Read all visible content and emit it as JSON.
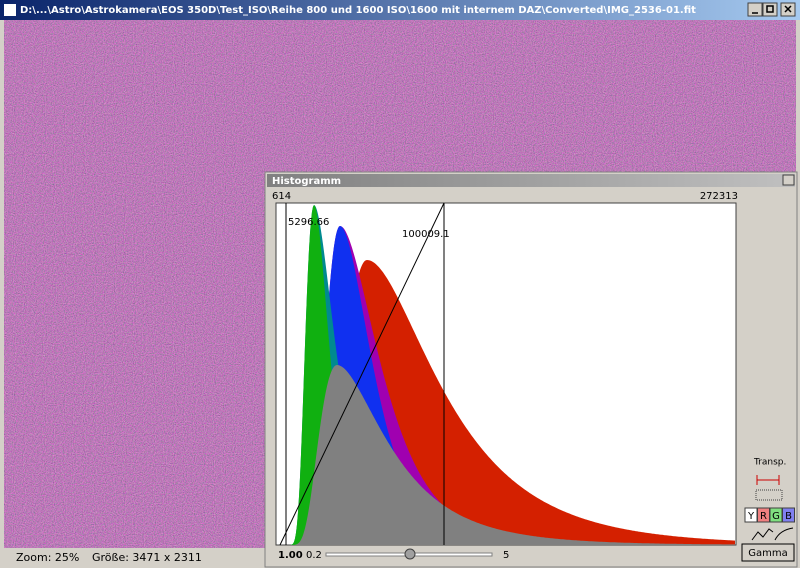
{
  "window": {
    "title": "D:\\...\\Astro\\Astrokamera\\EOS 350D\\Test_ISO\\Reihe 800 und 1600 ISO\\1600 mit internem DAZ\\Converted\\IMG_2536-01.fit"
  },
  "status": {
    "zoom": "Zoom: 25%",
    "size": "Größe: 3471 x 2311"
  },
  "histogram": {
    "title": "Histogramm",
    "min_label": "614",
    "max_label": "272313",
    "black_point_label": "5296.66",
    "white_point_label": "100009.1",
    "gamma_value": "1.00",
    "slider_min": "0.2",
    "slider_max": "5",
    "transp_label": "Transp.",
    "channels": [
      "Y",
      "R",
      "G",
      "B"
    ],
    "gamma_button": "Gamma"
  }
}
